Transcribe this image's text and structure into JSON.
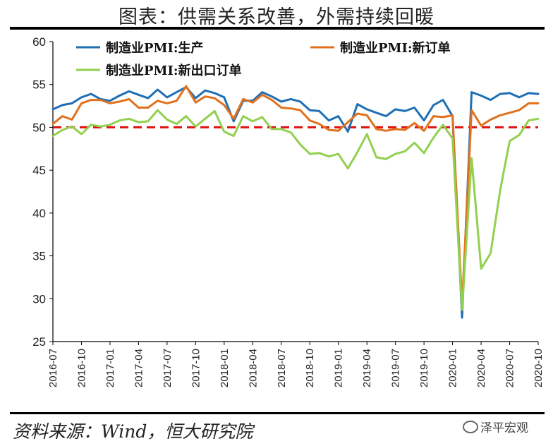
{
  "page": {
    "title": "图表：供需关系改善，外需持续回暖",
    "source": "资料来源：Wind，恒大研究院",
    "watermark": "泽平宏观"
  },
  "chart_data": {
    "type": "line",
    "ylim": [
      25,
      60
    ],
    "yticks": [
      25,
      30,
      35,
      40,
      45,
      50,
      55,
      60
    ],
    "xticks": [
      "2016-07",
      "2016-10",
      "2017-01",
      "2017-04",
      "2017-07",
      "2017-10",
      "2018-01",
      "2018-04",
      "2018-07",
      "2018-10",
      "2019-01",
      "2019-04",
      "2019-07",
      "2019-10",
      "2020-01",
      "2020-04",
      "2020-07",
      "2020-10"
    ],
    "x": [
      "2016-07",
      "2016-08",
      "2016-09",
      "2016-10",
      "2016-11",
      "2016-12",
      "2017-01",
      "2017-02",
      "2017-03",
      "2017-04",
      "2017-05",
      "2017-06",
      "2017-07",
      "2017-08",
      "2017-09",
      "2017-10",
      "2017-11",
      "2017-12",
      "2018-01",
      "2018-02",
      "2018-03",
      "2018-04",
      "2018-05",
      "2018-06",
      "2018-07",
      "2018-08",
      "2018-09",
      "2018-10",
      "2018-11",
      "2018-12",
      "2019-01",
      "2019-02",
      "2019-03",
      "2019-04",
      "2019-05",
      "2019-06",
      "2019-07",
      "2019-08",
      "2019-09",
      "2019-10",
      "2019-11",
      "2019-12",
      "2020-01",
      "2020-02",
      "2020-03",
      "2020-04",
      "2020-05",
      "2020-06",
      "2020-07",
      "2020-08",
      "2020-09",
      "2020-10"
    ],
    "reference_line": 50,
    "legend_position": "top",
    "series": [
      {
        "name": "制造业PMI:生产",
        "color": "#1f6fb5",
        "values": [
          52.1,
          52.6,
          52.8,
          53.5,
          53.9,
          53.3,
          53.1,
          53.7,
          54.2,
          53.8,
          53.4,
          54.4,
          53.5,
          54.1,
          54.7,
          53.4,
          54.3,
          54.0,
          53.5,
          50.7,
          53.1,
          53.1,
          54.1,
          53.6,
          53.0,
          53.3,
          53.0,
          52.0,
          51.9,
          50.8,
          51.3,
          49.5,
          52.7,
          52.1,
          51.7,
          51.3,
          52.1,
          51.9,
          52.3,
          50.8,
          52.6,
          53.2,
          51.3,
          27.8,
          54.1,
          53.7,
          53.2,
          53.9,
          54.0,
          53.5,
          54.0,
          53.9
        ]
      },
      {
        "name": "制造业PMI:新订单",
        "color": "#e2711d",
        "values": [
          50.4,
          51.3,
          50.9,
          52.8,
          53.2,
          53.2,
          52.8,
          53.0,
          53.3,
          52.3,
          52.3,
          53.1,
          52.8,
          53.1,
          54.8,
          52.9,
          53.6,
          53.4,
          52.6,
          51.0,
          53.3,
          52.9,
          53.8,
          53.2,
          52.3,
          52.2,
          52.0,
          50.8,
          50.4,
          49.7,
          49.6,
          50.6,
          51.6,
          51.4,
          49.8,
          49.6,
          49.8,
          49.7,
          50.5,
          49.6,
          51.3,
          51.2,
          51.4,
          29.3,
          52.0,
          50.2,
          50.9,
          51.4,
          51.7,
          52.0,
          52.8,
          52.8
        ]
      },
      {
        "name": "制造业PMI:新出口订单",
        "color": "#92d050",
        "values": [
          49.0,
          49.7,
          50.1,
          49.2,
          50.3,
          50.1,
          50.3,
          50.8,
          51.0,
          50.6,
          50.7,
          52.0,
          50.9,
          50.4,
          51.3,
          50.1,
          51.0,
          51.9,
          49.5,
          49.0,
          51.3,
          50.7,
          51.2,
          49.8,
          49.8,
          49.4,
          48.0,
          46.9,
          47.0,
          46.6,
          46.9,
          45.2,
          47.1,
          49.2,
          46.5,
          46.3,
          46.9,
          47.2,
          48.2,
          47.0,
          48.8,
          50.3,
          48.7,
          28.7,
          46.4,
          33.5,
          35.3,
          42.6,
          48.4,
          49.1,
          50.8,
          51.0
        ]
      }
    ]
  }
}
